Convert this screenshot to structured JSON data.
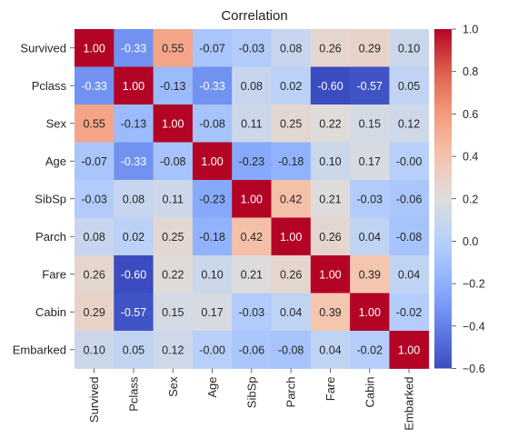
{
  "chart_data": {
    "type": "heatmap",
    "title": "Correlation",
    "xlabel": "",
    "ylabel": "",
    "row_labels": [
      "Survived",
      "Pclass",
      "Sex",
      "Age",
      "SibSp",
      "Parch",
      "Fare",
      "Cabin",
      "Embarked"
    ],
    "col_labels": [
      "Survived",
      "Pclass",
      "Sex",
      "Age",
      "SibSp",
      "Parch",
      "Fare",
      "Cabin",
      "Embarked"
    ],
    "values": [
      [
        1.0,
        -0.33,
        0.55,
        -0.07,
        -0.03,
        0.08,
        0.26,
        0.29,
        0.1
      ],
      [
        -0.33,
        1.0,
        -0.13,
        -0.33,
        0.08,
        0.02,
        -0.6,
        -0.57,
        0.05
      ],
      [
        0.55,
        -0.13,
        1.0,
        -0.08,
        0.11,
        0.25,
        0.22,
        0.15,
        0.12
      ],
      [
        -0.07,
        -0.33,
        -0.08,
        1.0,
        -0.23,
        -0.18,
        0.1,
        0.17,
        -0.0
      ],
      [
        -0.03,
        0.08,
        0.11,
        -0.23,
        1.0,
        0.42,
        0.21,
        -0.03,
        -0.06
      ],
      [
        0.08,
        0.02,
        0.25,
        -0.18,
        0.42,
        1.0,
        0.26,
        0.04,
        -0.08
      ],
      [
        0.26,
        -0.6,
        0.22,
        0.1,
        0.21,
        0.26,
        1.0,
        0.39,
        0.04
      ],
      [
        0.29,
        -0.57,
        0.15,
        0.17,
        -0.03,
        0.04,
        0.39,
        1.0,
        -0.02
      ],
      [
        0.1,
        0.05,
        0.12,
        -0.0,
        -0.06,
        -0.08,
        0.04,
        -0.02,
        1.0
      ]
    ],
    "annotation_format": "0.00",
    "colormap": "coolwarm",
    "colorbar": {
      "vmin": -0.6,
      "vmax": 1.0,
      "ticks": [
        "−0.6",
        "−0.4",
        "−0.2",
        "0.0",
        "0.2",
        "0.4",
        "0.6",
        "0.8",
        "1.0"
      ],
      "tick_values": [
        -0.6,
        -0.4,
        -0.2,
        0.0,
        0.2,
        0.4,
        0.6,
        0.8,
        1.0
      ]
    },
    "grid": false,
    "legend": "colorbar-right"
  }
}
